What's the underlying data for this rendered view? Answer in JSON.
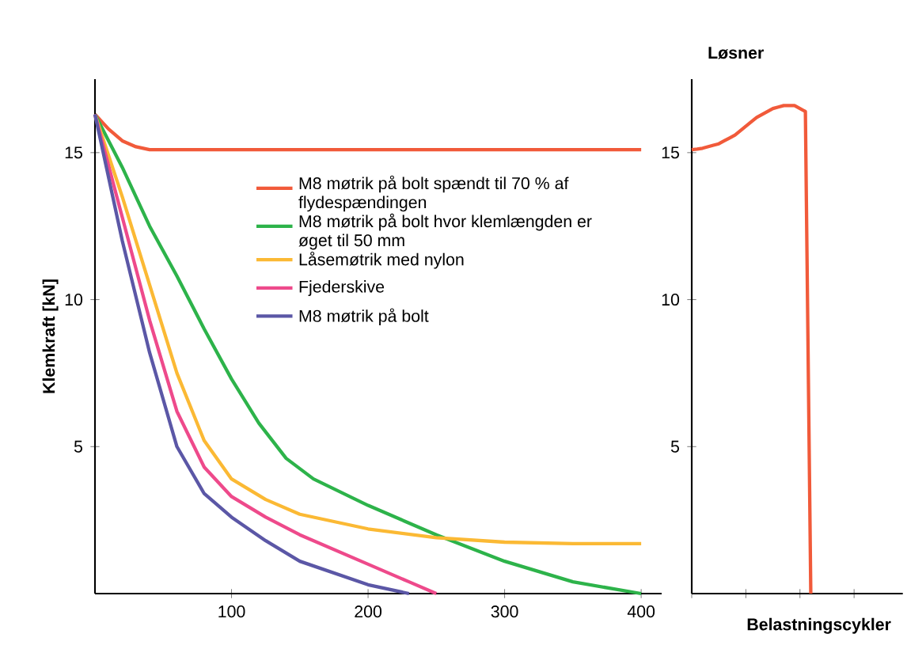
{
  "chart_data": [
    {
      "type": "line",
      "ylabel": "Klemkraft [kN]",
      "xlim": [
        0,
        415
      ],
      "ylim": [
        0,
        17.5
      ],
      "xticks": [
        100,
        200,
        300,
        400
      ],
      "yticks": [
        5,
        10,
        15
      ],
      "grid": false,
      "legend": "top",
      "marker": "none",
      "line_style": "solid",
      "series": [
        {
          "name": "M8 møtrik på bolt spændt til 70 % af flydespændingen",
          "color": "#f15a3a",
          "x": [
            0,
            10,
            20,
            30,
            40,
            50,
            75,
            100,
            200,
            300,
            400
          ],
          "values": [
            16.3,
            15.8,
            15.4,
            15.2,
            15.1,
            15.1,
            15.1,
            15.1,
            15.1,
            15.1,
            15.1
          ]
        },
        {
          "name": "M8 møtrik på bolt hvor klemlængden er øget til 50 mm",
          "color": "#2db34a",
          "x": [
            0,
            20,
            40,
            60,
            80,
            100,
            120,
            140,
            160,
            200,
            250,
            300,
            350,
            400
          ],
          "values": [
            16.3,
            14.5,
            12.5,
            10.8,
            9,
            7.3,
            5.8,
            4.6,
            3.9,
            3.0,
            2.0,
            1.1,
            0.4,
            0
          ]
        },
        {
          "name": "Låsemøtrik med nylon",
          "color": "#fbb934",
          "x": [
            0,
            20,
            40,
            60,
            80,
            100,
            125,
            150,
            200,
            250,
            300,
            350,
            400
          ],
          "values": [
            16.3,
            13.5,
            10.5,
            7.5,
            5.2,
            3.9,
            3.2,
            2.7,
            2.2,
            1.9,
            1.75,
            1.7,
            1.7
          ]
        },
        {
          "name": "Fjederskive",
          "color": "#ee4a8b",
          "x": [
            0,
            20,
            40,
            60,
            80,
            100,
            125,
            150,
            200,
            230,
            250
          ],
          "values": [
            16.3,
            12.8,
            9.3,
            6.2,
            4.3,
            3.3,
            2.6,
            2.0,
            1.0,
            0.4,
            0
          ]
        },
        {
          "name": "M8 møtrik på bolt",
          "color": "#5b57a6",
          "x": [
            0,
            20,
            40,
            60,
            80,
            100,
            125,
            150,
            200,
            230
          ],
          "values": [
            16.3,
            12,
            8.2,
            5.0,
            3.4,
            2.6,
            1.8,
            1.1,
            0.3,
            0
          ]
        }
      ]
    },
    {
      "type": "line",
      "title": "Løsner",
      "xlabel": "Belastningscykler",
      "ylim": [
        0,
        17.5
      ],
      "yticks": [
        5,
        10,
        15
      ],
      "tick_labels": "y",
      "grid": false,
      "marker": "none",
      "line_style": "solid",
      "categories": [
        null,
        null,
        null,
        null,
        null,
        null,
        null,
        null,
        null,
        null,
        null,
        null,
        null,
        null,
        null,
        null,
        null,
        null,
        null,
        null,
        null,
        null,
        null,
        null,
        null,
        null,
        null,
        null,
        null,
        null,
        null,
        null,
        null,
        null,
        null,
        null,
        null,
        null,
        null,
        null
      ],
      "series": [
        {
          "color": "#f15a3a",
          "values": [
            15.1,
            15.12,
            15.15,
            15.2,
            15.25,
            15.3,
            15.4,
            15.5,
            15.6,
            15.75,
            15.9,
            16.05,
            16.2,
            16.3,
            16.4,
            16.5,
            16.55,
            16.6,
            16.6,
            16.6,
            16.5,
            16.4,
            0,
            null,
            null,
            null,
            null,
            null,
            null,
            null,
            null,
            null,
            null,
            null,
            null,
            null,
            null,
            null,
            null,
            null
          ]
        }
      ]
    }
  ]
}
